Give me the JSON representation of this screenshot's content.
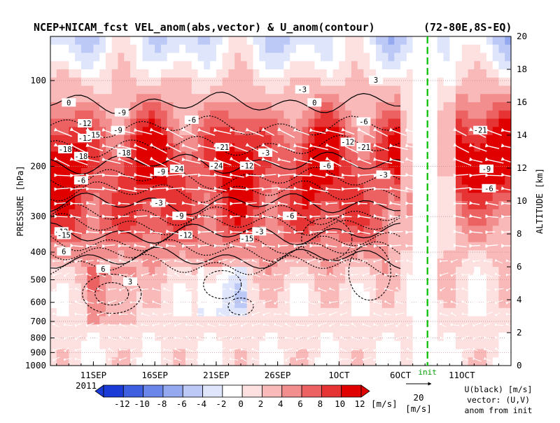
{
  "chart_data": {
    "type": "heatmap",
    "title": "NCEP+NICAM_fcst VEL_anom(abs,vector) & U_anom(contour)",
    "region": "(72-80E,8S-EQ)",
    "ylabel": "PRESSURE [hPa]",
    "y2label": "ALTITUDE [km]",
    "year_label": "2011",
    "init_label": "init",
    "x_ticks": [
      "11SEP",
      "16SEP",
      "21SEP",
      "26SEP",
      "1OCT",
      "6OCT",
      "11OCT"
    ],
    "x_tick_days": [
      11,
      16,
      21,
      26,
      31,
      36,
      41
    ],
    "x_range_days": [
      7.5,
      45
    ],
    "init_day": 38.2,
    "pressure_ticks": [
      "100",
      "200",
      "300",
      "400",
      "500",
      "600",
      "700",
      "800",
      "900",
      "1000"
    ],
    "pressure_tick_values": [
      100,
      200,
      300,
      400,
      500,
      600,
      700,
      800,
      900,
      1000
    ],
    "pressure_range_hPa": [
      70,
      1000
    ],
    "log_pressure_axis": true,
    "altitude_ticks": [
      "0",
      "2",
      "4",
      "6",
      "8",
      "10",
      "12",
      "14",
      "16",
      "18",
      "20"
    ],
    "colorbar": {
      "levels": [
        "-12",
        "-10",
        "-8",
        "-6",
        "-4",
        "-2",
        "0",
        "2",
        "4",
        "6",
        "8",
        "10",
        "12"
      ],
      "unit": "[m/s]",
      "colors": [
        "#1a3bd6",
        "#3d5fe0",
        "#6a86ea",
        "#95a9f1",
        "#bcc9f6",
        "#dfe5fb",
        "#ffffff",
        "#fde0e0",
        "#f9b9b9",
        "#f38e8e",
        "#ec6262",
        "#e63434",
        "#e00000"
      ]
    },
    "vector_ref": {
      "value": "20",
      "unit": "[m/s]"
    },
    "legend_notes": [
      "U(black) [m/s]",
      "vector: (U,V)",
      "anom from init"
    ],
    "contour_labels": [
      "-12",
      "-15",
      "-9",
      "-18",
      "-21",
      "-24",
      "-6",
      "-3",
      "0",
      "3",
      "6",
      "-12",
      "-15",
      "-9",
      "-18",
      "-6",
      "-3",
      "-9",
      "-12",
      "-15",
      "-3",
      "-6",
      "-12",
      "-21",
      "-9",
      "-6",
      "-3",
      "-6",
      "-9",
      "-12",
      "-24",
      "-18",
      "-15",
      "-21",
      "-6",
      "-3",
      "0",
      "3",
      "6"
    ]
  }
}
